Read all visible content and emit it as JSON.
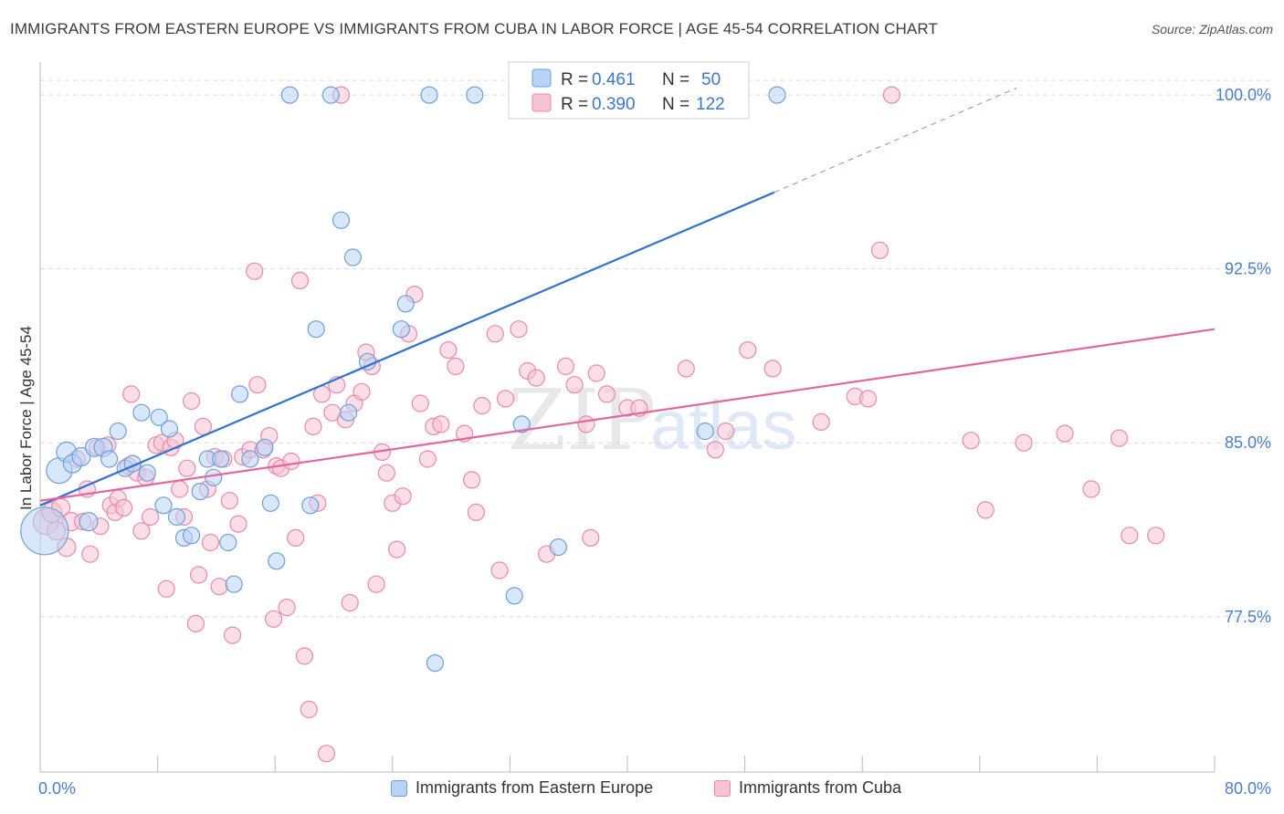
{
  "title": "IMMIGRANTS FROM EASTERN EUROPE VS IMMIGRANTS FROM CUBA IN LABOR FORCE | AGE 45-54 CORRELATION CHART",
  "source": "Source: ZipAtlas.com",
  "watermark": {
    "zip": "ZIP",
    "atlas": "atlas"
  },
  "legend_top": [
    {
      "r_label": "R =",
      "r_value": "0.461",
      "n_label": "N =",
      "n_value": "50"
    },
    {
      "r_label": "R =",
      "r_value": "0.390",
      "n_label": "N =",
      "n_value": "122"
    }
  ],
  "legend_bottom": [
    {
      "label": "Immigrants from Eastern Europe"
    },
    {
      "label": "Immigrants from Cuba"
    }
  ],
  "colors": {
    "blue_fill": "#b8d3f5",
    "blue_stroke": "#6f9fd8",
    "blue_line": "#2f72cf",
    "pink_fill": "#f7c3d3",
    "pink_stroke": "#e98aaa",
    "pink_line": "#e2679a",
    "grid": "#dcdcdc",
    "tick_label": "#4a7fc9",
    "axis_title": "#333333"
  },
  "chart_data": {
    "type": "scatter",
    "xlabel": "",
    "ylabel": "In Labor Force | Age 45-54",
    "xlim": [
      0,
      80
    ],
    "ylim": [
      70.8,
      101.5
    ],
    "x_tick_labels": [
      {
        "value": 0,
        "label": "0.0%"
      },
      {
        "value": 80,
        "label": "80.0%"
      }
    ],
    "y_tick_labels": [
      {
        "value": 100,
        "label": "100.0%"
      },
      {
        "value": 92.5,
        "label": "92.5%"
      },
      {
        "value": 85,
        "label": "85.0%"
      },
      {
        "value": 77.5,
        "label": "77.5%"
      }
    ],
    "grid": true,
    "legend_position": "top-center",
    "series": [
      {
        "name": "Immigrants from Eastern Europe",
        "color": "#6f9fd8",
        "trend": {
          "x": [
            0,
            50
          ],
          "y": [
            82.3,
            95.8
          ],
          "dashed_to": [
            66.5,
            100.3
          ]
        },
        "points": [
          [
            0.3,
            81.2,
            26
          ],
          [
            1.3,
            83.8,
            14
          ],
          [
            1.8,
            84.6,
            11
          ],
          [
            2.2,
            84.1,
            10
          ],
          [
            2.8,
            84.4,
            10
          ],
          [
            3.3,
            81.6,
            10
          ],
          [
            3.7,
            84.8,
            10
          ],
          [
            4.3,
            84.8,
            10
          ],
          [
            4.7,
            84.3,
            9
          ],
          [
            5.3,
            85.5,
            9
          ],
          [
            5.8,
            83.9,
            9
          ],
          [
            6.3,
            84.1,
            9
          ],
          [
            6.9,
            86.3,
            9
          ],
          [
            7.3,
            83.7,
            9
          ],
          [
            8.1,
            86.1,
            9
          ],
          [
            8.4,
            82.3,
            9
          ],
          [
            8.8,
            85.6,
            9
          ],
          [
            9.3,
            81.8,
            9
          ],
          [
            9.8,
            80.9,
            9
          ],
          [
            10.3,
            81.0,
            9
          ],
          [
            10.9,
            82.9,
            9
          ],
          [
            11.4,
            84.3,
            9
          ],
          [
            11.8,
            83.5,
            9
          ],
          [
            12.3,
            84.3,
            9
          ],
          [
            12.8,
            80.7,
            9
          ],
          [
            13.2,
            78.9,
            9
          ],
          [
            13.6,
            87.1,
            9
          ],
          [
            14.3,
            84.3,
            9
          ],
          [
            15.3,
            84.8,
            9
          ],
          [
            15.7,
            82.4,
            9
          ],
          [
            16.1,
            79.9,
            9
          ],
          [
            17.0,
            100.0,
            9
          ],
          [
            18.4,
            82.3,
            9
          ],
          [
            18.8,
            89.9,
            9
          ],
          [
            19.8,
            100.0,
            9
          ],
          [
            20.5,
            94.6,
            9
          ],
          [
            21.0,
            86.3,
            9
          ],
          [
            21.3,
            93.0,
            9
          ],
          [
            22.3,
            88.5,
            9
          ],
          [
            24.6,
            89.9,
            9
          ],
          [
            24.9,
            91.0,
            9
          ],
          [
            26.5,
            100.0,
            9
          ],
          [
            26.9,
            75.5,
            9
          ],
          [
            29.6,
            100.0,
            9
          ],
          [
            32.3,
            78.4,
            9
          ],
          [
            32.6,
            100.0,
            9
          ],
          [
            32.8,
            85.8,
            9
          ],
          [
            35.3,
            80.5,
            9
          ],
          [
            45.3,
            85.5,
            9
          ],
          [
            50.2,
            100.0,
            9
          ]
        ]
      },
      {
        "name": "Immigrants from Cuba",
        "color": "#e98aaa",
        "trend": {
          "x": [
            0,
            80
          ],
          "y": [
            82.5,
            89.9
          ]
        },
        "points": [
          [
            0.4,
            81.6,
            14
          ],
          [
            0.8,
            82.0,
            11
          ],
          [
            1.1,
            81.2,
            10
          ],
          [
            1.4,
            82.2,
            10
          ],
          [
            1.8,
            80.5,
            10
          ],
          [
            2.1,
            81.6,
            10
          ],
          [
            2.5,
            84.3,
            9
          ],
          [
            2.9,
            81.6,
            9
          ],
          [
            3.2,
            83.0,
            9
          ],
          [
            3.4,
            80.2,
            9
          ],
          [
            3.9,
            84.8,
            9
          ],
          [
            4.1,
            81.4,
            9
          ],
          [
            4.6,
            84.9,
            9
          ],
          [
            4.8,
            82.3,
            9
          ],
          [
            5.1,
            82.0,
            9
          ],
          [
            5.3,
            82.6,
            9
          ],
          [
            5.7,
            82.2,
            9
          ],
          [
            6.0,
            84.0,
            9
          ],
          [
            6.2,
            87.1,
            9
          ],
          [
            6.6,
            83.7,
            9
          ],
          [
            6.9,
            81.2,
            9
          ],
          [
            7.2,
            83.5,
            9
          ],
          [
            7.5,
            81.8,
            9
          ],
          [
            7.9,
            84.9,
            9
          ],
          [
            8.3,
            85.0,
            9
          ],
          [
            8.6,
            78.7,
            9
          ],
          [
            8.9,
            84.8,
            9
          ],
          [
            9.2,
            85.1,
            9
          ],
          [
            9.5,
            83.0,
            9
          ],
          [
            9.8,
            81.8,
            9
          ],
          [
            10.0,
            83.9,
            9
          ],
          [
            10.3,
            86.8,
            9
          ],
          [
            10.6,
            77.2,
            9
          ],
          [
            10.8,
            79.3,
            9
          ],
          [
            11.1,
            85.7,
            9
          ],
          [
            11.4,
            83.0,
            9
          ],
          [
            11.6,
            80.7,
            9
          ],
          [
            11.9,
            84.4,
            9
          ],
          [
            12.2,
            78.8,
            9
          ],
          [
            12.5,
            84.3,
            9
          ],
          [
            12.9,
            82.5,
            9
          ],
          [
            13.1,
            76.7,
            9
          ],
          [
            13.5,
            81.5,
            9
          ],
          [
            13.8,
            84.4,
            9
          ],
          [
            14.3,
            84.7,
            9
          ],
          [
            14.6,
            92.4,
            9
          ],
          [
            14.8,
            87.5,
            9
          ],
          [
            15.2,
            84.7,
            9
          ],
          [
            15.6,
            85.3,
            9
          ],
          [
            15.9,
            77.4,
            9
          ],
          [
            16.1,
            84.0,
            9
          ],
          [
            16.4,
            83.9,
            9
          ],
          [
            16.8,
            77.9,
            9
          ],
          [
            17.1,
            84.2,
            9
          ],
          [
            17.4,
            80.9,
            9
          ],
          [
            17.7,
            92.0,
            9
          ],
          [
            18.0,
            75.8,
            9
          ],
          [
            18.3,
            73.5,
            9
          ],
          [
            18.6,
            85.7,
            9
          ],
          [
            18.9,
            82.4,
            9
          ],
          [
            19.2,
            87.1,
            9
          ],
          [
            19.5,
            71.6,
            9
          ],
          [
            19.9,
            86.3,
            9
          ],
          [
            20.2,
            87.5,
            9
          ],
          [
            20.5,
            100.0,
            9
          ],
          [
            20.8,
            86.0,
            9
          ],
          [
            21.1,
            78.1,
            9
          ],
          [
            21.4,
            86.7,
            9
          ],
          [
            21.9,
            87.2,
            9
          ],
          [
            22.2,
            88.9,
            9
          ],
          [
            22.6,
            88.3,
            9
          ],
          [
            22.9,
            78.9,
            9
          ],
          [
            23.3,
            84.6,
            9
          ],
          [
            23.6,
            83.7,
            9
          ],
          [
            24.0,
            82.4,
            9
          ],
          [
            24.3,
            80.4,
            9
          ],
          [
            24.7,
            82.7,
            9
          ],
          [
            25.1,
            89.7,
            9
          ],
          [
            25.5,
            91.4,
            9
          ],
          [
            25.9,
            86.7,
            9
          ],
          [
            26.4,
            84.3,
            9
          ],
          [
            26.8,
            85.7,
            9
          ],
          [
            27.3,
            85.8,
            9
          ],
          [
            27.8,
            89.0,
            9
          ],
          [
            28.3,
            88.3,
            9
          ],
          [
            28.9,
            85.4,
            9
          ],
          [
            29.4,
            83.4,
            9
          ],
          [
            29.7,
            82.0,
            9
          ],
          [
            30.1,
            86.6,
            9
          ],
          [
            31.0,
            89.7,
            9
          ],
          [
            31.3,
            79.5,
            9
          ],
          [
            31.7,
            86.9,
            9
          ],
          [
            32.6,
            89.9,
            9
          ],
          [
            33.2,
            88.1,
            9
          ],
          [
            33.8,
            87.8,
            9
          ],
          [
            34.5,
            80.2,
            9
          ],
          [
            35.8,
            88.3,
            9
          ],
          [
            36.4,
            87.5,
            9
          ],
          [
            37.2,
            85.8,
            9
          ],
          [
            37.5,
            80.9,
            9
          ],
          [
            37.9,
            88.0,
            9
          ],
          [
            38.6,
            87.1,
            9
          ],
          [
            40.0,
            86.5,
            9
          ],
          [
            40.8,
            86.5,
            9
          ],
          [
            44.0,
            88.2,
            9
          ],
          [
            46.0,
            84.7,
            9
          ],
          [
            46.7,
            85.5,
            9
          ],
          [
            48.2,
            89.0,
            9
          ],
          [
            49.9,
            88.2,
            9
          ],
          [
            53.2,
            85.9,
            9
          ],
          [
            55.5,
            87.0,
            9
          ],
          [
            56.4,
            86.9,
            9
          ],
          [
            57.2,
            93.3,
            9
          ],
          [
            58.0,
            100.0,
            9
          ],
          [
            63.4,
            85.1,
            9
          ],
          [
            64.4,
            82.1,
            9
          ],
          [
            67.0,
            85.0,
            9
          ],
          [
            69.8,
            85.4,
            9
          ],
          [
            71.6,
            83.0,
            9
          ],
          [
            73.5,
            85.2,
            9
          ],
          [
            74.2,
            81.0,
            9
          ],
          [
            76.0,
            81.0,
            9
          ]
        ]
      }
    ]
  }
}
